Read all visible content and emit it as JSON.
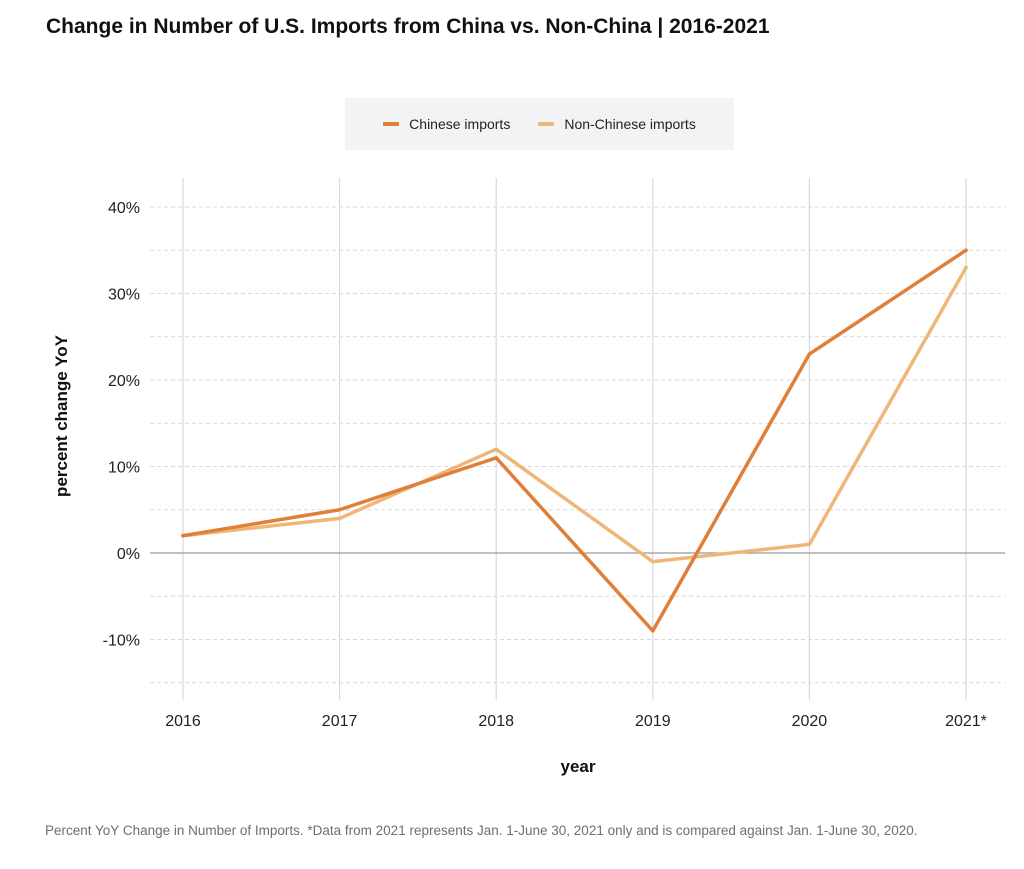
{
  "title": "Change in Number of U.S. Imports from China vs. Non-China | 2016-2021",
  "caption": "Percent YoY Change in Number of Imports. *Data from 2021 represents Jan. 1-June 30, 2021 only and is compared against Jan. 1-June 30, 2020.",
  "colors": {
    "chinese": "#e07f3a",
    "non_chinese": "#efb678",
    "zero_line": "#9a9a9a",
    "grid": "#d9d9d9"
  },
  "chart_data": {
    "type": "line",
    "title": "Change in Number of U.S. Imports from China vs. Non-China | 2016-2021",
    "xlabel": "year",
    "ylabel": "percent change YoY",
    "categories": [
      "2016",
      "2017",
      "2018",
      "2019",
      "2020",
      "2021*"
    ],
    "yticks": [
      -10,
      0,
      10,
      20,
      30,
      40
    ],
    "ytick_labels": [
      "-10%",
      "0%",
      "10%",
      "20%",
      "30%",
      "40%"
    ],
    "ylim": [
      -15,
      42
    ],
    "grid": true,
    "legend_position": "top-center",
    "series": [
      {
        "name": "Chinese imports",
        "values": [
          2,
          5,
          11,
          -9,
          23,
          35
        ]
      },
      {
        "name": "Non-Chinese imports",
        "values": [
          2,
          4,
          12,
          -1,
          1,
          33
        ]
      }
    ]
  }
}
